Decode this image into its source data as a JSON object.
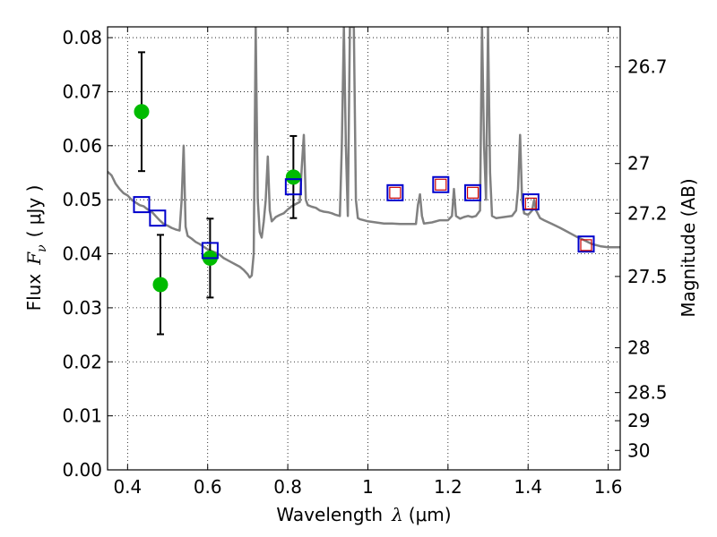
{
  "chart_data": {
    "type": "scatter",
    "xlabel_text": "Wavelength",
    "xlabel_symbol": "λ",
    "xlabel_unit": "(μm)",
    "ylabel_text": "Flux",
    "ylabel_symbol": "F",
    "ylabel_subscript": "ν",
    "ylabel_unit": "( μJy )",
    "ylabel_right": "Magnitude (AB)",
    "xlim": [
      0.35,
      1.63
    ],
    "ylim": [
      0.0,
      0.082
    ],
    "grid": true,
    "x_ticks": [
      0.4,
      0.6,
      0.8,
      1.0,
      1.2,
      1.4,
      1.6
    ],
    "x_tick_labels": [
      "0.4",
      "0.6",
      "0.8",
      "1",
      "1.2",
      "1.4",
      "1.6"
    ],
    "y_ticks": [
      0.0,
      0.01,
      0.02,
      0.03,
      0.04,
      0.05,
      0.06,
      0.07,
      0.08
    ],
    "y_tick_labels": [
      "0.00",
      "0.01",
      "0.02",
      "0.03",
      "0.04",
      "0.05",
      "0.06",
      "0.07",
      "0.08"
    ],
    "right_ticks": [
      {
        "flux": 0.0746,
        "label": "26.7"
      },
      {
        "flux": 0.0567,
        "label": "27"
      },
      {
        "flux": 0.0475,
        "label": "27.2"
      },
      {
        "flux": 0.0358,
        "label": "27.5"
      },
      {
        "flux": 0.0226,
        "label": "28"
      },
      {
        "flux": 0.0143,
        "label": "28.5"
      },
      {
        "flux": 0.0091,
        "label": "29"
      },
      {
        "flux": 0.0036,
        "label": "30"
      }
    ],
    "series": [
      {
        "style": "line",
        "color": "#808080",
        "points": [
          [
            0.35,
            0.0552
          ],
          [
            0.36,
            0.0545
          ],
          [
            0.37,
            0.053
          ],
          [
            0.38,
            0.052
          ],
          [
            0.39,
            0.0512
          ],
          [
            0.4,
            0.0508
          ],
          [
            0.41,
            0.05
          ],
          [
            0.42,
            0.0495
          ],
          [
            0.43,
            0.049
          ],
          [
            0.44,
            0.0488
          ],
          [
            0.45,
            0.0482
          ],
          [
            0.46,
            0.0478
          ],
          [
            0.47,
            0.047
          ],
          [
            0.48,
            0.0462
          ],
          [
            0.49,
            0.0455
          ],
          [
            0.5,
            0.0452
          ],
          [
            0.51,
            0.0448
          ],
          [
            0.52,
            0.0445
          ],
          [
            0.53,
            0.0443
          ],
          [
            0.535,
            0.05
          ],
          [
            0.54,
            0.06
          ],
          [
            0.545,
            0.045
          ],
          [
            0.55,
            0.0433
          ],
          [
            0.56,
            0.0428
          ],
          [
            0.57,
            0.0422
          ],
          [
            0.58,
            0.0418
          ],
          [
            0.59,
            0.0413
          ],
          [
            0.6,
            0.0408
          ],
          [
            0.61,
            0.0405
          ],
          [
            0.62,
            0.0402
          ],
          [
            0.63,
            0.0398
          ],
          [
            0.64,
            0.0392
          ],
          [
            0.65,
            0.0388
          ],
          [
            0.66,
            0.0384
          ],
          [
            0.67,
            0.038
          ],
          [
            0.68,
            0.0376
          ],
          [
            0.69,
            0.037
          ],
          [
            0.7,
            0.0362
          ],
          [
            0.705,
            0.0356
          ],
          [
            0.71,
            0.036
          ],
          [
            0.715,
            0.04
          ],
          [
            0.72,
            0.082
          ],
          [
            0.725,
            0.05
          ],
          [
            0.73,
            0.044
          ],
          [
            0.735,
            0.043
          ],
          [
            0.74,
            0.046
          ],
          [
            0.745,
            0.05
          ],
          [
            0.75,
            0.058
          ],
          [
            0.755,
            0.048
          ],
          [
            0.76,
            0.046
          ],
          [
            0.77,
            0.0468
          ],
          [
            0.78,
            0.0472
          ],
          [
            0.79,
            0.0475
          ],
          [
            0.8,
            0.0482
          ],
          [
            0.81,
            0.0488
          ],
          [
            0.82,
            0.0492
          ],
          [
            0.83,
            0.0496
          ],
          [
            0.835,
            0.056
          ],
          [
            0.84,
            0.062
          ],
          [
            0.845,
            0.05
          ],
          [
            0.85,
            0.049
          ],
          [
            0.86,
            0.0487
          ],
          [
            0.87,
            0.0485
          ],
          [
            0.88,
            0.048
          ],
          [
            0.89,
            0.0478
          ],
          [
            0.9,
            0.0477
          ],
          [
            0.91,
            0.0475
          ],
          [
            0.92,
            0.0472
          ],
          [
            0.93,
            0.047
          ],
          [
            0.935,
            0.06
          ],
          [
            0.94,
            0.082
          ],
          [
            0.945,
            0.06
          ],
          [
            0.95,
            0.047
          ],
          [
            0.955,
            0.082
          ],
          [
            0.96,
            0.082
          ],
          [
            0.965,
            0.082
          ],
          [
            0.97,
            0.05
          ],
          [
            0.975,
            0.0466
          ],
          [
            0.98,
            0.0464
          ],
          [
            0.99,
            0.0462
          ],
          [
            1.0,
            0.046
          ],
          [
            1.02,
            0.0458
          ],
          [
            1.04,
            0.0456
          ],
          [
            1.06,
            0.0456
          ],
          [
            1.08,
            0.0455
          ],
          [
            1.1,
            0.0455
          ],
          [
            1.12,
            0.0455
          ],
          [
            1.125,
            0.049
          ],
          [
            1.13,
            0.051
          ],
          [
            1.135,
            0.047
          ],
          [
            1.14,
            0.0456
          ],
          [
            1.16,
            0.0458
          ],
          [
            1.18,
            0.0462
          ],
          [
            1.2,
            0.0462
          ],
          [
            1.21,
            0.047
          ],
          [
            1.215,
            0.052
          ],
          [
            1.22,
            0.047
          ],
          [
            1.23,
            0.0465
          ],
          [
            1.24,
            0.0468
          ],
          [
            1.25,
            0.047
          ],
          [
            1.26,
            0.0468
          ],
          [
            1.27,
            0.047
          ],
          [
            1.28,
            0.048
          ],
          [
            1.285,
            0.082
          ],
          [
            1.29,
            0.06
          ],
          [
            1.295,
            0.05
          ],
          [
            1.3,
            0.082
          ],
          [
            1.305,
            0.055
          ],
          [
            1.31,
            0.047
          ],
          [
            1.32,
            0.0466
          ],
          [
            1.34,
            0.0468
          ],
          [
            1.36,
            0.047
          ],
          [
            1.37,
            0.048
          ],
          [
            1.375,
            0.052
          ],
          [
            1.38,
            0.062
          ],
          [
            1.385,
            0.05
          ],
          [
            1.39,
            0.0475
          ],
          [
            1.4,
            0.0472
          ],
          [
            1.41,
            0.048
          ],
          [
            1.415,
            0.05
          ],
          [
            1.42,
            0.048
          ],
          [
            1.43,
            0.0466
          ],
          [
            1.44,
            0.0462
          ],
          [
            1.46,
            0.0455
          ],
          [
            1.48,
            0.0448
          ],
          [
            1.5,
            0.044
          ],
          [
            1.52,
            0.0432
          ],
          [
            1.54,
            0.0425
          ],
          [
            1.56,
            0.0418
          ],
          [
            1.58,
            0.0414
          ],
          [
            1.6,
            0.0412
          ],
          [
            1.62,
            0.0412
          ],
          [
            1.63,
            0.0412
          ]
        ]
      },
      {
        "style": "points-errorbar",
        "color": "#00bb00",
        "points": [
          {
            "x": 0.435,
            "y": 0.0663,
            "yerr": 0.011
          },
          {
            "x": 0.482,
            "y": 0.0343,
            "yerr": 0.0092
          },
          {
            "x": 0.606,
            "y": 0.0392,
            "yerr": 0.0073
          },
          {
            "x": 0.814,
            "y": 0.0542,
            "yerr": 0.0076
          }
        ]
      },
      {
        "style": "open-square",
        "color": "#0000cc",
        "points": [
          [
            0.435,
            0.0491
          ],
          [
            0.475,
            0.0466
          ],
          [
            0.606,
            0.0406
          ],
          [
            0.814,
            0.0524
          ],
          [
            1.068,
            0.0513
          ],
          [
            1.182,
            0.0528
          ],
          [
            1.262,
            0.0513
          ],
          [
            1.407,
            0.0496
          ],
          [
            1.545,
            0.0418
          ]
        ]
      },
      {
        "style": "open-square-small",
        "color": "#cc0000",
        "points": [
          [
            1.068,
            0.0513
          ],
          [
            1.182,
            0.0528
          ],
          [
            1.262,
            0.0513
          ],
          [
            1.407,
            0.0493
          ],
          [
            1.545,
            0.0416
          ]
        ]
      }
    ]
  }
}
